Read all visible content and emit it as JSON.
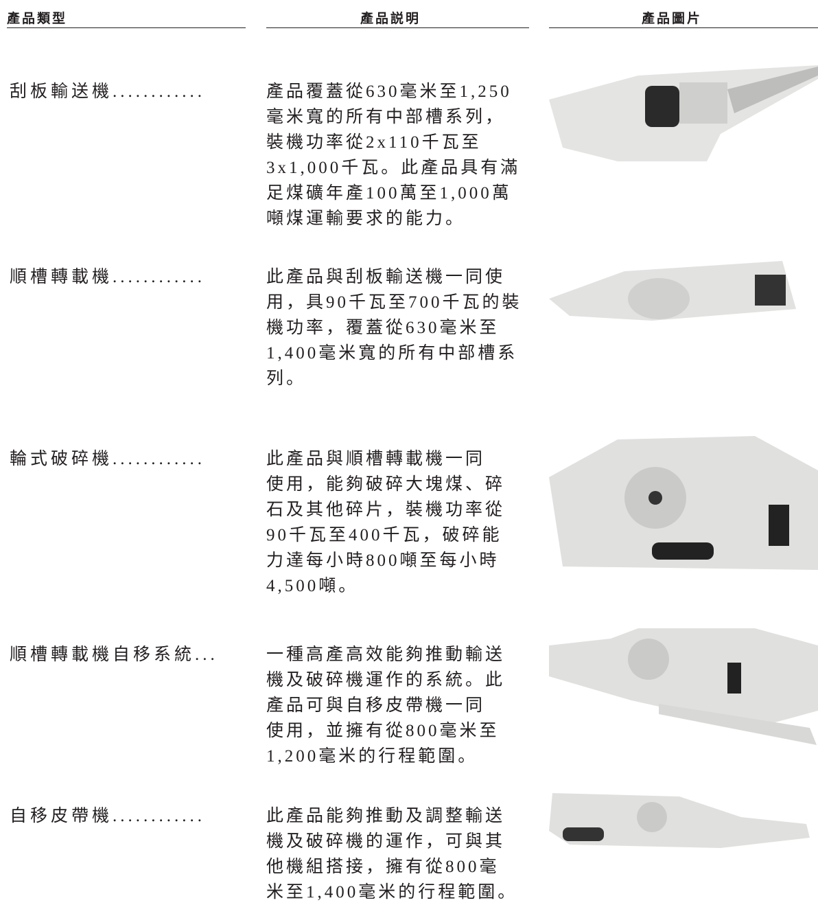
{
  "table": {
    "headers": [
      "產品類型",
      "產品説明",
      "產品圖片"
    ],
    "rows": [
      {
        "type": "刮板輸送機............",
        "description": [
          "產品覆蓋從630毫米至1,250",
          "毫米寬的所有中部槽系列，",
          "裝機功率從2x110千瓦至",
          "3x1,000千瓦。此產品具有滿",
          "足煤礦年產100萬至1,000萬",
          "噸煤運輸要求的能力。"
        ]
      },
      {
        "type": "順槽轉載機............",
        "description": [
          "此產品與刮板輸送機一同使",
          "用，具90千瓦至700千瓦的裝",
          "機功率，覆蓋從630毫米至",
          "1,400毫米寬的所有中部槽系",
          "列。"
        ]
      },
      {
        "type": "輪式破碎機............",
        "description": [
          "此產品與順槽轉載機一同",
          "使用，能夠破碎大塊煤、碎",
          "石及其他碎片，裝機功率從",
          "90千瓦至400千瓦，破碎能",
          "力達每小時800噸至每小時",
          "4,500噸。"
        ]
      },
      {
        "type": "順槽轉載機自移系統...",
        "description": [
          "一種高產高效能夠推動輸送",
          "機及破碎機運作的系統。此",
          "產品可與自移皮帶機一同",
          "使用，並擁有從800毫米至",
          "1,200毫米的行程範圍。"
        ]
      },
      {
        "type": "自移皮帶機............",
        "description": [
          "此產品能夠推動及調整輸送",
          "機及破碎機的運作，可與其",
          "他機組搭接，擁有從800毫",
          "米至1,400毫米的行程範圍。"
        ]
      }
    ]
  }
}
